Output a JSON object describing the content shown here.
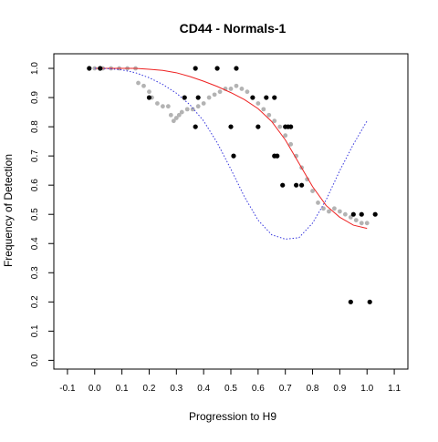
{
  "chart_data": {
    "type": "scatter",
    "title": "CD44 - Normals-1",
    "xlabel": "Progression to H9",
    "ylabel": "Frequency of Detection",
    "xlim": [
      -0.15,
      1.15
    ],
    "ylim": [
      -0.03,
      1.05
    ],
    "x_ticks": [
      "-0.1",
      "0.0",
      "0.1",
      "0.2",
      "0.3",
      "0.4",
      "0.5",
      "0.6",
      "0.7",
      "0.8",
      "0.9",
      "1.0",
      "1.1"
    ],
    "y_ticks": [
      "0.0",
      "0.1",
      "0.2",
      "0.3",
      "0.4",
      "0.5",
      "0.6",
      "0.7",
      "0.8",
      "0.9",
      "1.0"
    ],
    "grid": false,
    "legend": false,
    "series": [
      {
        "kind": "points",
        "color": "#000000",
        "x": [
          -0.02,
          0.02,
          0.2,
          0.33,
          0.37,
          0.37,
          0.38,
          0.45,
          0.5,
          0.51,
          0.52,
          0.58,
          0.6,
          0.63,
          0.66,
          0.66,
          0.67,
          0.69,
          0.7,
          0.71,
          0.72,
          0.74,
          0.76,
          0.94,
          0.95,
          0.98,
          1.01,
          1.03
        ],
        "y": [
          1.0,
          1.0,
          0.9,
          0.9,
          1.0,
          0.8,
          0.9,
          1.0,
          0.8,
          0.7,
          1.0,
          0.9,
          0.8,
          0.9,
          0.9,
          0.7,
          0.7,
          0.6,
          0.8,
          0.8,
          0.8,
          0.6,
          0.6,
          0.2,
          0.5,
          0.5,
          0.2,
          0.5
        ]
      },
      {
        "kind": "points",
        "color": "#b3b3b3",
        "x": [
          0.0,
          0.03,
          0.06,
          0.09,
          0.12,
          0.15,
          0.16,
          0.18,
          0.2,
          0.21,
          0.23,
          0.25,
          0.27,
          0.28,
          0.29,
          0.3,
          0.31,
          0.32,
          0.34,
          0.36,
          0.38,
          0.4,
          0.42,
          0.44,
          0.46,
          0.48,
          0.5,
          0.52,
          0.54,
          0.56,
          0.58,
          0.6,
          0.62,
          0.64,
          0.66,
          0.68,
          0.7,
          0.72,
          0.74,
          0.76,
          0.78,
          0.8,
          0.82,
          0.84,
          0.86,
          0.88,
          0.9,
          0.92,
          0.94,
          0.96,
          0.98,
          1.0
        ],
        "y": [
          1.0,
          1.0,
          1.0,
          1.0,
          1.0,
          1.0,
          0.95,
          0.94,
          0.92,
          0.9,
          0.88,
          0.87,
          0.87,
          0.84,
          0.82,
          0.83,
          0.84,
          0.85,
          0.86,
          0.86,
          0.87,
          0.88,
          0.9,
          0.91,
          0.92,
          0.93,
          0.93,
          0.94,
          0.93,
          0.92,
          0.9,
          0.88,
          0.86,
          0.84,
          0.82,
          0.8,
          0.77,
          0.74,
          0.7,
          0.66,
          0.62,
          0.58,
          0.54,
          0.52,
          0.51,
          0.52,
          0.51,
          0.5,
          0.49,
          0.48,
          0.47,
          0.47
        ]
      },
      {
        "kind": "line",
        "color": "#ee2222",
        "style": "solid",
        "x": [
          0.0,
          0.05,
          0.1,
          0.15,
          0.2,
          0.25,
          0.3,
          0.35,
          0.4,
          0.45,
          0.5,
          0.55,
          0.6,
          0.65,
          0.7,
          0.75,
          0.8,
          0.85,
          0.9,
          0.95,
          1.0
        ],
        "y": [
          1.0,
          1.0,
          1.0,
          1.0,
          0.997,
          0.993,
          0.985,
          0.972,
          0.956,
          0.938,
          0.917,
          0.893,
          0.862,
          0.818,
          0.755,
          0.675,
          0.595,
          0.53,
          0.49,
          0.463,
          0.452
        ]
      },
      {
        "kind": "line",
        "color": "#3333dd",
        "style": "dotted",
        "x": [
          0.0,
          0.05,
          0.1,
          0.15,
          0.2,
          0.25,
          0.3,
          0.35,
          0.4,
          0.45,
          0.5,
          0.55,
          0.6,
          0.65,
          0.7,
          0.75,
          0.8,
          0.85,
          0.9,
          0.95,
          1.0
        ],
        "y": [
          1.0,
          0.999,
          0.995,
          0.985,
          0.968,
          0.945,
          0.915,
          0.875,
          0.82,
          0.745,
          0.655,
          0.56,
          0.48,
          0.43,
          0.415,
          0.42,
          0.47,
          0.55,
          0.65,
          0.74,
          0.82
        ]
      }
    ]
  }
}
